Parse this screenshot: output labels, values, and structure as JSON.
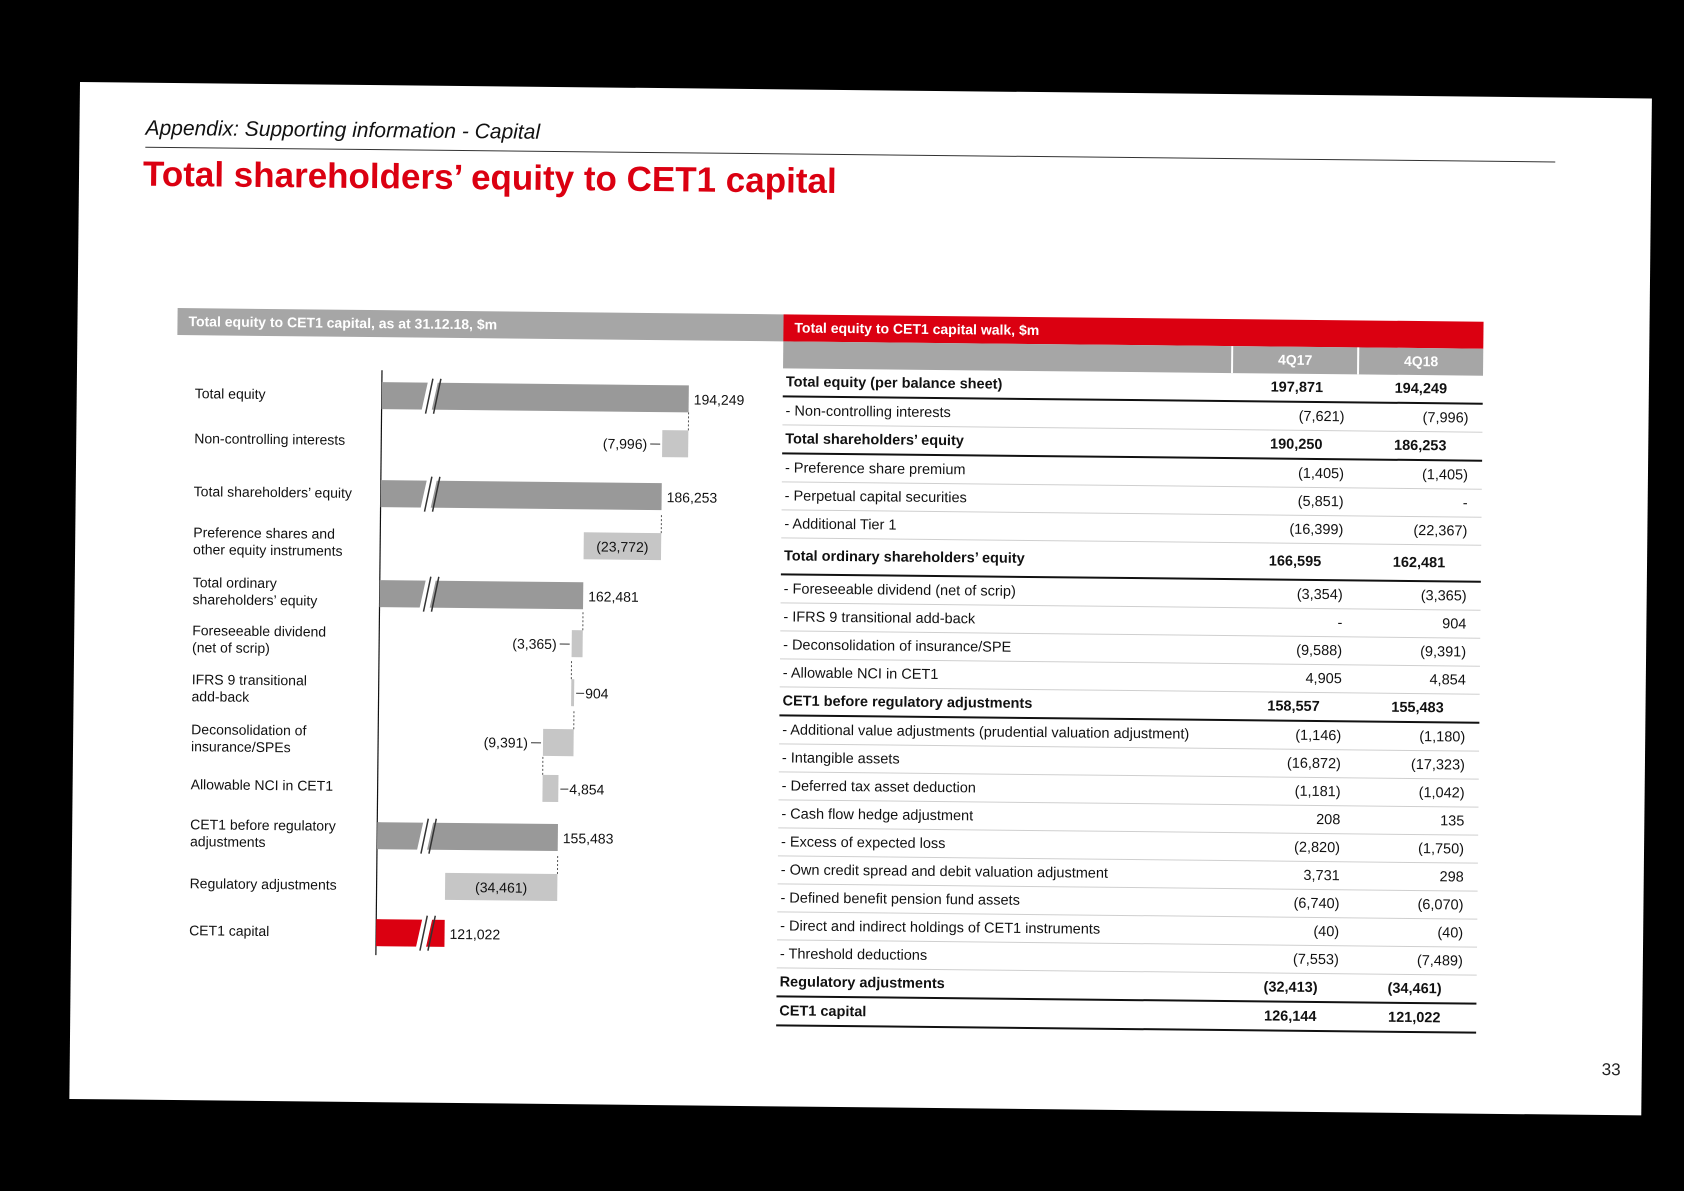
{
  "subtitle": "Appendix: Supporting information - Capital",
  "title": "Total shareholders’ equity to CET1 capital",
  "page_number": "33",
  "colors": {
    "accent": "#db0011",
    "grey_header": "#a6a6a6",
    "bar_dark": "#999999",
    "bar_light": "#c6c6c6"
  },
  "chart": {
    "header": "Total equity to CET1 capital, as at 31.12.18, $m"
  },
  "chart_data": {
    "type": "waterfall",
    "title": "Total equity to CET1 capital, as at 31.12.18, $m",
    "unit": "$m",
    "axis_break": true,
    "steps": [
      {
        "label": "Total equity",
        "value": 194249,
        "display": "194,249",
        "kind": "total"
      },
      {
        "label": "Non-controlling interests",
        "value": -7996,
        "display": "(7,996)",
        "kind": "delta"
      },
      {
        "label": "Total shareholders’ equity",
        "value": 186253,
        "display": "186,253",
        "kind": "total"
      },
      {
        "label": "Preference shares and other equity instruments",
        "value": -23772,
        "display": "(23,772)",
        "kind": "delta"
      },
      {
        "label": "Total ordinary shareholders’ equity",
        "value": 162481,
        "display": "162,481",
        "kind": "total"
      },
      {
        "label": "Foreseeable dividend (net of scrip)",
        "value": -3365,
        "display": "(3,365)",
        "kind": "delta"
      },
      {
        "label": "IFRS 9 transitional add-back",
        "value": 904,
        "display": "904",
        "kind": "delta"
      },
      {
        "label": "Deconsolidation of insurance/SPEs",
        "value": -9391,
        "display": "(9,391)",
        "kind": "delta"
      },
      {
        "label": "Allowable NCI in CET1",
        "value": 4854,
        "display": "4,854",
        "kind": "delta"
      },
      {
        "label": "CET1 before regulatory adjustments",
        "value": 155483,
        "display": "155,483",
        "kind": "total"
      },
      {
        "label": "Regulatory adjustments",
        "value": -34461,
        "display": "(34,461)",
        "kind": "delta"
      },
      {
        "label": "CET1 capital",
        "value": 121022,
        "display": "121,022",
        "kind": "final"
      }
    ]
  },
  "chart_labels": [
    [
      "Total equity"
    ],
    [
      "Non-controlling interests"
    ],
    [
      "Total shareholders’ equity"
    ],
    [
      "Preference shares and",
      "other equity instruments"
    ],
    [
      "Total ordinary",
      "shareholders’ equity"
    ],
    [
      "Foreseeable dividend",
      "(net of scrip)"
    ],
    [
      "IFRS 9 transitional",
      "add-back"
    ],
    [
      "Deconsolidation of",
      "insurance/SPEs"
    ],
    [
      "Allowable NCI in CET1"
    ],
    [
      "CET1 before regulatory",
      "adjustments"
    ],
    [
      "Regulatory adjustments"
    ],
    [
      "CET1 capital"
    ]
  ],
  "table": {
    "header": "Total equity to CET1 capital walk, $m",
    "columns": [
      "4Q17",
      "4Q18"
    ],
    "rows": [
      {
        "label": "Total equity (per balance sheet)",
        "v1": "197,871",
        "v2": "194,249",
        "bold": true
      },
      {
        "label": "- Non-controlling interests",
        "v1": "(7,621)",
        "v2": "(7,996)"
      },
      {
        "label": "Total shareholders’ equity",
        "v1": "190,250",
        "v2": "186,253",
        "bold": true
      },
      {
        "label": "- Preference share premium",
        "v1": "(1,405)",
        "v2": "(1,405)"
      },
      {
        "label": "- Perpetual capital securities",
        "v1": "(5,851)",
        "v2": "-"
      },
      {
        "label": "- Additional Tier 1",
        "v1": "(16,399)",
        "v2": "(22,367)"
      },
      {
        "label": "Total ordinary shareholders’ equity",
        "v1": "166,595",
        "v2": "162,481",
        "bold": true,
        "tall": true
      },
      {
        "label": "- Foreseeable dividend (net of scrip)",
        "v1": "(3,354)",
        "v2": "(3,365)"
      },
      {
        "label": "- IFRS 9 transitional add-back",
        "v1": "-",
        "v2": "904"
      },
      {
        "label": "- Deconsolidation of insurance/SPE",
        "v1": "(9,588)",
        "v2": "(9,391)"
      },
      {
        "label": "- Allowable NCI in CET1",
        "v1": "4,905",
        "v2": "4,854"
      },
      {
        "label": "CET1 before regulatory adjustments",
        "v1": "158,557",
        "v2": "155,483",
        "bold": true
      },
      {
        "label": "- Additional value adjustments (prudential valuation adjustment)",
        "v1": "(1,146)",
        "v2": "(1,180)"
      },
      {
        "label": "- Intangible assets",
        "v1": "(16,872)",
        "v2": "(17,323)"
      },
      {
        "label": "- Deferred tax asset deduction",
        "v1": "(1,181)",
        "v2": "(1,042)"
      },
      {
        "label": "- Cash flow hedge adjustment",
        "v1": "208",
        "v2": "135"
      },
      {
        "label": "- Excess of expected loss",
        "v1": "(2,820)",
        "v2": "(1,750)"
      },
      {
        "label": "- Own credit spread and debit valuation adjustment",
        "v1": "3,731",
        "v2": "298"
      },
      {
        "label": "- Defined benefit pension fund assets",
        "v1": "(6,740)",
        "v2": "(6,070)"
      },
      {
        "label": "- Direct and indirect holdings of CET1 instruments",
        "v1": "(40)",
        "v2": "(40)"
      },
      {
        "label": "- Threshold deductions",
        "v1": "(7,553)",
        "v2": "(7,489)"
      },
      {
        "label": "Regulatory adjustments",
        "v1": "(32,413)",
        "v2": "(34,461)",
        "bold": true
      },
      {
        "label": "CET1 capital",
        "v1": "126,144",
        "v2": "121,022",
        "bold": true
      }
    ]
  }
}
